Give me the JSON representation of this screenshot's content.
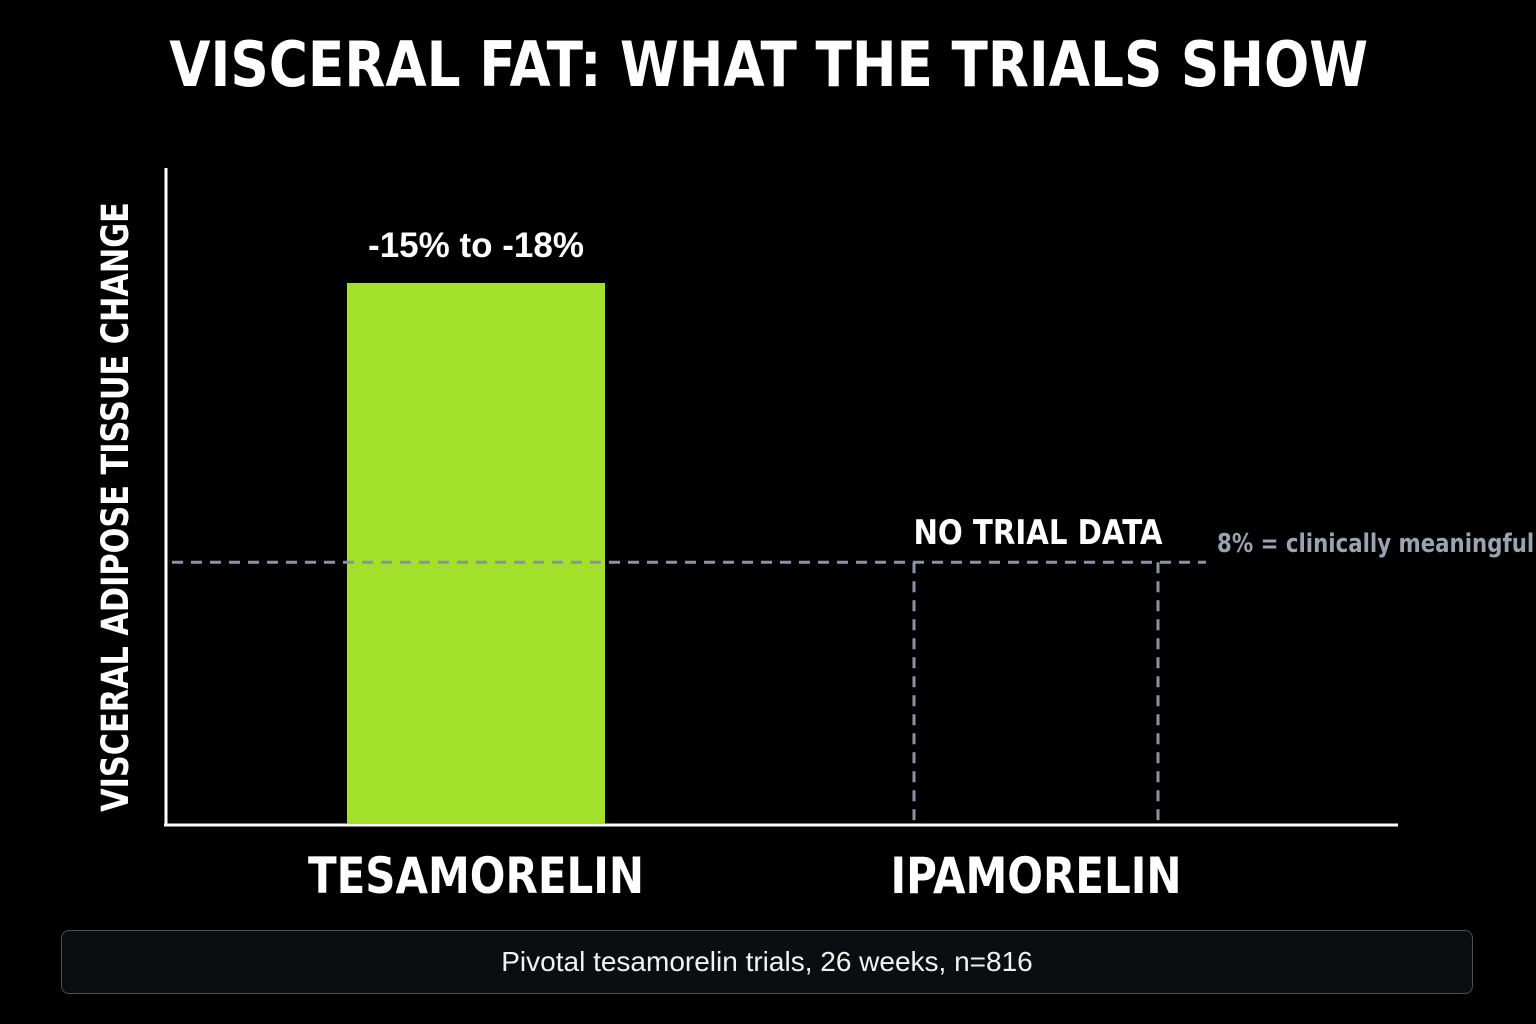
{
  "chart_data": {
    "type": "bar",
    "title": "VISCERAL FAT: WHAT THE TRIALS SHOW",
    "ylabel": "VISCERAL ADIPOSE TISSUE CHANGE",
    "xlabel": "",
    "categories": [
      "TESAMORELIN",
      "IPAMORELIN"
    ],
    "values": [
      16.5,
      null
    ],
    "value_ranges": [
      [
        -15,
        -18
      ],
      null
    ],
    "data_labels": [
      "-15% to -18%",
      "NO TRIAL DATA"
    ],
    "ylim": [
      0,
      20
    ],
    "reference_line": {
      "value": 8,
      "label": "8% = clinically meaningful",
      "style": "dashed"
    },
    "grid": false,
    "legend": "none",
    "colors": {
      "bar": "#a3e02b",
      "reference": "#8a93a3",
      "axis": "#ffffff",
      "background": "#000000"
    }
  },
  "footer": {
    "caption": "Pivotal tesamorelin trials, 26 weeks, n=816"
  }
}
